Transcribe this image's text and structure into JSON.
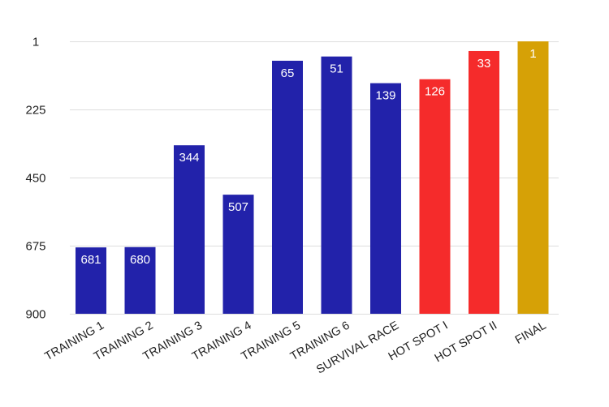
{
  "chart_data": {
    "type": "bar",
    "title": "",
    "xlabel": "",
    "ylabel": "",
    "y_reversed": true,
    "ylim": [
      1,
      900
    ],
    "yticks": [
      1,
      225,
      450,
      675,
      900
    ],
    "grid": true,
    "categories": [
      "TRAINING 1",
      "TRAINING 2",
      "TRAINING 3",
      "TRAINING 4",
      "TRAINING 5",
      "TRAINING 6",
      "SURVIVAL RACE",
      "HOT SPOT I",
      "HOT SPOT II",
      "FINAL"
    ],
    "values": [
      681,
      680,
      344,
      507,
      65,
      51,
      139,
      126,
      33,
      1
    ],
    "bar_colors": [
      "#2222aa",
      "#2222aa",
      "#2222aa",
      "#2222aa",
      "#2222aa",
      "#2222aa",
      "#2222aa",
      "#f52b2b",
      "#f52b2b",
      "#d6a106"
    ],
    "data_label_color": "#ffffff"
  }
}
